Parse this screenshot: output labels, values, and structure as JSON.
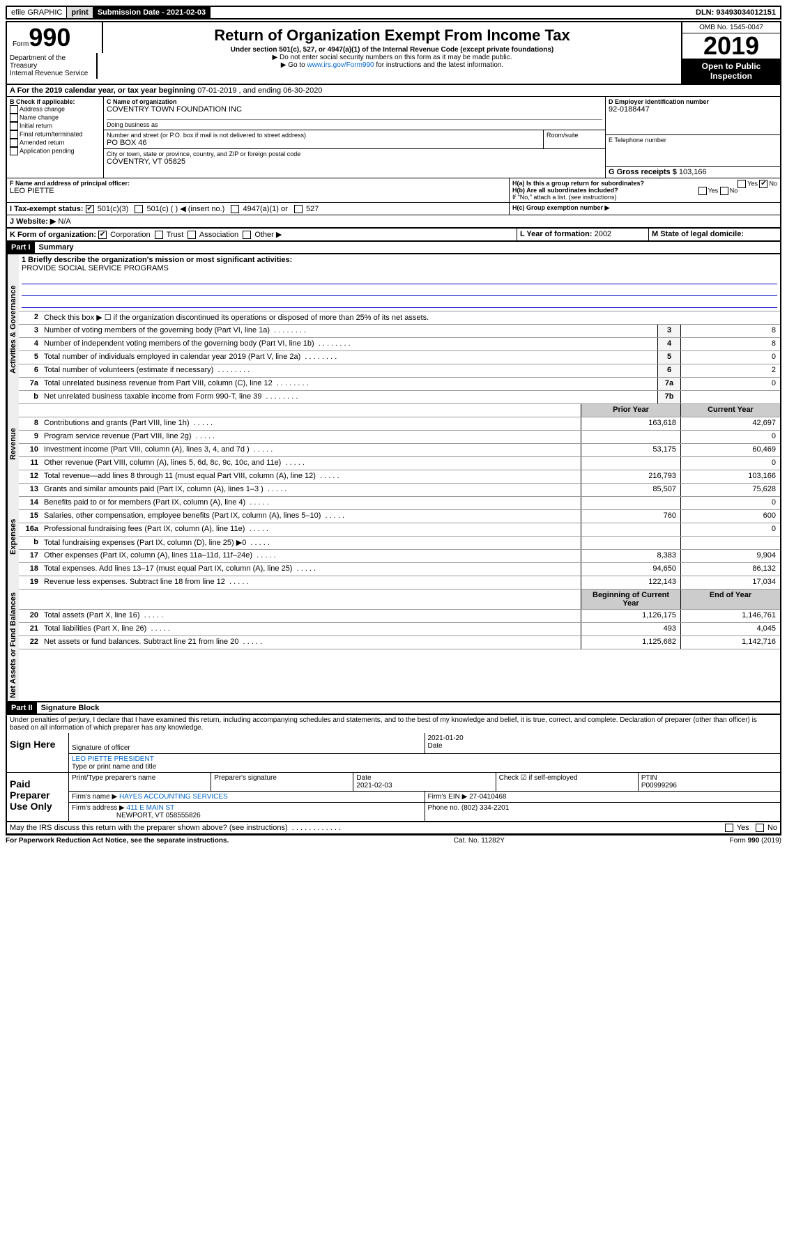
{
  "topbar": {
    "efile": "efile GRAPHIC",
    "print": "print",
    "sub_label": "Submission Date - 2021-02-03",
    "dln": "DLN: 93493034012151"
  },
  "header": {
    "form_word": "Form",
    "form_num": "990",
    "title": "Return of Organization Exempt From Income Tax",
    "subtitle": "Under section 501(c), 527, or 4947(a)(1) of the Internal Revenue Code (except private foundations)",
    "arrow1": "▶ Do not enter social security numbers on this form as it may be made public.",
    "arrow2_pre": "▶ Go to ",
    "arrow2_link": "www.irs.gov/Form990",
    "arrow2_post": " for instructions and the latest information.",
    "omb": "OMB No. 1545-0047",
    "year": "2019",
    "open": "Open to Public Inspection",
    "dept1": "Department of the Treasury",
    "dept2": "Internal Revenue Service"
  },
  "period": {
    "label_a": "A For the 2019 calendar year, or tax year beginning ",
    "begin": "07-01-2019",
    "mid": " , and ending ",
    "end": "06-30-2020"
  },
  "boxB": {
    "label": "B Check if applicable:",
    "opts": [
      "Address change",
      "Name change",
      "Initial return",
      "Final return/terminated",
      "Amended return",
      "Application pending"
    ]
  },
  "boxC": {
    "name_label": "C Name of organization",
    "name": "COVENTRY TOWN FOUNDATION INC",
    "dba_label": "Doing business as",
    "addr_label": "Number and street (or P.O. box if mail is not delivered to street address)",
    "addr": "PO BOX 46",
    "room_label": "Room/suite",
    "city_label": "City or town, state or province, country, and ZIP or foreign postal code",
    "city": "COVENTRY, VT  05825"
  },
  "boxD": {
    "label": "D Employer identification number",
    "val": "92-0188447"
  },
  "boxE": {
    "label": "E Telephone number",
    "val": ""
  },
  "boxG": {
    "label": "G Gross receipts $",
    "val": "103,166"
  },
  "boxF": {
    "label": "F Name and address of principal officer:",
    "val": "LEO PIETTE"
  },
  "boxH": {
    "a": "H(a) Is this a group return for subordinates?",
    "b": "H(b) Are all subordinates included?",
    "note": "If \"No,\" attach a list. (see instructions)",
    "c": "H(c) Group exemption number ▶",
    "yes": "Yes",
    "no": "No"
  },
  "boxI": {
    "label": "I   Tax-exempt status:",
    "o1": "501(c)(3)",
    "o2": "501(c) (  ) ◀ (insert no.)",
    "o3": "4947(a)(1) or",
    "o4": "527"
  },
  "boxJ": {
    "label": "J   Website: ▶",
    "val": "N/A"
  },
  "boxK": {
    "label": "K Form of organization:",
    "o1": "Corporation",
    "o2": "Trust",
    "o3": "Association",
    "o4": "Other ▶"
  },
  "boxL": {
    "label": "L Year of formation:",
    "val": "2002"
  },
  "boxM": {
    "label": "M State of legal domicile:",
    "val": ""
  },
  "part1": {
    "tag": "Part I",
    "title": "Summary"
  },
  "summary": {
    "l1_label": "1  Briefly describe the organization's mission or most significant activities:",
    "l1_val": "PROVIDE SOCIAL SERVICE PROGRAMS",
    "l2": "Check this box ▶ ☐  if the organization discontinued its operations or disposed of more than 25% of its net assets.",
    "rows_gov": [
      {
        "n": "3",
        "d": "Number of voting members of the governing body (Part VI, line 1a)",
        "b": "3",
        "v": "8"
      },
      {
        "n": "4",
        "d": "Number of independent voting members of the governing body (Part VI, line 1b)",
        "b": "4",
        "v": "8"
      },
      {
        "n": "5",
        "d": "Total number of individuals employed in calendar year 2019 (Part V, line 2a)",
        "b": "5",
        "v": "0"
      },
      {
        "n": "6",
        "d": "Total number of volunteers (estimate if necessary)",
        "b": "6",
        "v": "2"
      },
      {
        "n": "7a",
        "d": "Total unrelated business revenue from Part VIII, column (C), line 12",
        "b": "7a",
        "v": "0"
      },
      {
        "n": "b",
        "d": "Net unrelated business taxable income from Form 990-T, line 39",
        "b": "7b",
        "v": ""
      }
    ],
    "hdr_prior": "Prior Year",
    "hdr_curr": "Current Year",
    "rows_rev": [
      {
        "n": "8",
        "d": "Contributions and grants (Part VIII, line 1h)",
        "p": "163,618",
        "c": "42,697"
      },
      {
        "n": "9",
        "d": "Program service revenue (Part VIII, line 2g)",
        "p": "",
        "c": "0"
      },
      {
        "n": "10",
        "d": "Investment income (Part VIII, column (A), lines 3, 4, and 7d )",
        "p": "53,175",
        "c": "60,469"
      },
      {
        "n": "11",
        "d": "Other revenue (Part VIII, column (A), lines 5, 6d, 8c, 9c, 10c, and 11e)",
        "p": "",
        "c": "0"
      },
      {
        "n": "12",
        "d": "Total revenue—add lines 8 through 11 (must equal Part VIII, column (A), line 12)",
        "p": "216,793",
        "c": "103,166"
      }
    ],
    "rows_exp": [
      {
        "n": "13",
        "d": "Grants and similar amounts paid (Part IX, column (A), lines 1–3 )",
        "p": "85,507",
        "c": "75,628"
      },
      {
        "n": "14",
        "d": "Benefits paid to or for members (Part IX, column (A), line 4)",
        "p": "",
        "c": "0"
      },
      {
        "n": "15",
        "d": "Salaries, other compensation, employee benefits (Part IX, column (A), lines 5–10)",
        "p": "760",
        "c": "600"
      },
      {
        "n": "16a",
        "d": "Professional fundraising fees (Part IX, column (A), line 11e)",
        "p": "",
        "c": "0"
      },
      {
        "n": "b",
        "d": "Total fundraising expenses (Part IX, column (D), line 25) ▶0",
        "p": "",
        "c": ""
      },
      {
        "n": "17",
        "d": "Other expenses (Part IX, column (A), lines 11a–11d, 11f–24e)",
        "p": "8,383",
        "c": "9,904"
      },
      {
        "n": "18",
        "d": "Total expenses. Add lines 13–17 (must equal Part IX, column (A), line 25)",
        "p": "94,650",
        "c": "86,132"
      },
      {
        "n": "19",
        "d": "Revenue less expenses. Subtract line 18 from line 12",
        "p": "122,143",
        "c": "17,034"
      }
    ],
    "hdr_begin": "Beginning of Current Year",
    "hdr_end": "End of Year",
    "rows_net": [
      {
        "n": "20",
        "d": "Total assets (Part X, line 16)",
        "p": "1,126,175",
        "c": "1,146,761"
      },
      {
        "n": "21",
        "d": "Total liabilities (Part X, line 26)",
        "p": "493",
        "c": "4,045"
      },
      {
        "n": "22",
        "d": "Net assets or fund balances. Subtract line 21 from line 20",
        "p": "1,125,682",
        "c": "1,142,716"
      }
    ]
  },
  "vert": {
    "gov": "Activities & Governance",
    "rev": "Revenue",
    "exp": "Expenses",
    "net": "Net Assets or Fund Balances"
  },
  "part2": {
    "tag": "Part II",
    "title": "Signature Block"
  },
  "sig": {
    "perjury": "Under penalties of perjury, I declare that I have examined this return, including accompanying schedules and statements, and to the best of my knowledge and belief, it is true, correct, and complete. Declaration of preparer (other than officer) is based on all information of which preparer has any knowledge.",
    "sign_here": "Sign Here",
    "sig_off": "Signature of officer",
    "date": "2021-01-20",
    "date_lbl": "Date",
    "name": "LEO PIETTE  PRESIDENT",
    "name_lbl": "Type or print name and title",
    "paid": "Paid Preparer Use Only",
    "prep_name_lbl": "Print/Type preparer's name",
    "prep_sig_lbl": "Preparer's signature",
    "prep_date_lbl": "Date",
    "prep_date": "2021-02-03",
    "check_lbl": "Check ☑ if self-employed",
    "ptin_lbl": "PTIN",
    "ptin": "P00999296",
    "firm_name_lbl": "Firm's name    ▶",
    "firm_name": "HAYES ACCOUNTING SERVICES",
    "firm_ein_lbl": "Firm's EIN ▶",
    "firm_ein": "27-0410468",
    "firm_addr_lbl": "Firm's address ▶",
    "firm_addr": "411 E MAIN ST",
    "firm_addr2": "NEWPORT, VT  058555826",
    "phone_lbl": "Phone no.",
    "phone": "(802) 334-2201",
    "discuss": "May the IRS discuss this return with the preparer shown above? (see instructions)"
  },
  "footer": {
    "pra": "For Paperwork Reduction Act Notice, see the separate instructions.",
    "cat": "Cat. No. 11282Y",
    "form": "Form 990 (2019)"
  }
}
